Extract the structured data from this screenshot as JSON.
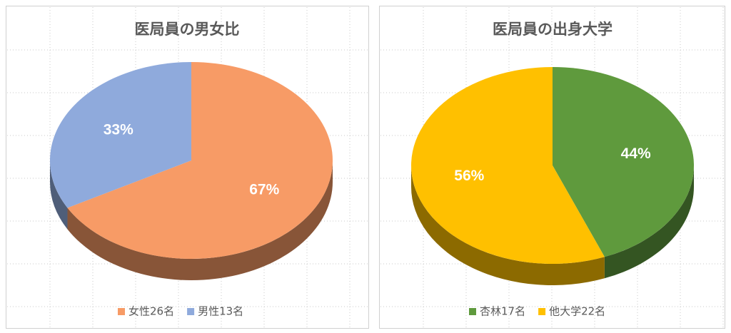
{
  "chart_data": [
    {
      "type": "pie",
      "title": "医局員の男女比",
      "categories": [
        "女性26名",
        "男性13名"
      ],
      "values": [
        67,
        33
      ],
      "value_labels": [
        "67%",
        "33%"
      ],
      "colors": [
        "#f79b66",
        "#8faadc"
      ]
    },
    {
      "type": "pie",
      "title": "医局員の出身大学",
      "categories": [
        "杏林17名",
        "他大学22名"
      ],
      "values": [
        44,
        56
      ],
      "value_labels": [
        "44%",
        "56%"
      ],
      "colors": [
        "#5f9a3d",
        "#ffc000"
      ]
    }
  ]
}
